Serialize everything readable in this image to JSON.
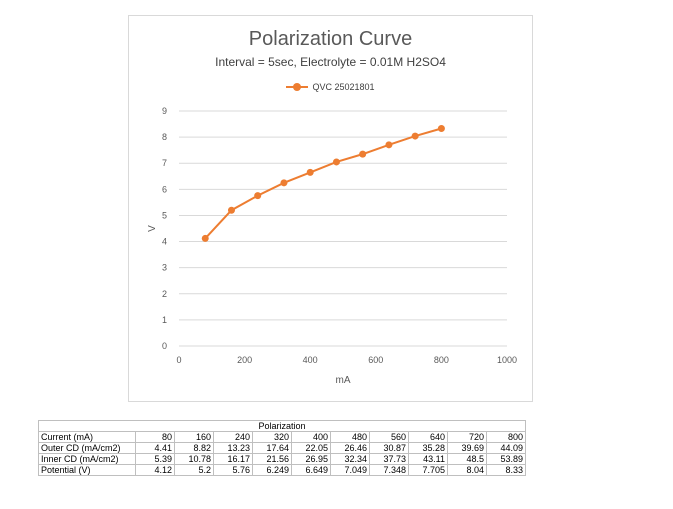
{
  "chart_data": {
    "type": "line",
    "title": "Polarization Curve",
    "subtitle": "Interval = 5sec, Electrolyte = 0.01M H2SO4",
    "xlabel": "mA",
    "ylabel": "V",
    "xlim": [
      0,
      1000
    ],
    "ylim": [
      0,
      9
    ],
    "xticks": [
      0,
      200,
      400,
      600,
      800,
      1000
    ],
    "yticks": [
      0,
      1,
      2,
      3,
      4,
      5,
      6,
      7,
      8,
      9
    ],
    "grid": "horizontal",
    "legend_position": "top",
    "series": [
      {
        "name": "QVC 25021801",
        "color": "#ED7D31",
        "x": [
          80,
          160,
          240,
          320,
          400,
          480,
          560,
          640,
          720,
          800
        ],
        "y": [
          4.12,
          5.2,
          5.76,
          6.249,
          6.649,
          7.049,
          7.348,
          7.705,
          8.04,
          8.33
        ]
      }
    ]
  },
  "table": {
    "caption": "Polarization",
    "rows": [
      {
        "label": "Current (mA)",
        "values": [
          "80",
          "160",
          "240",
          "320",
          "400",
          "480",
          "560",
          "640",
          "720",
          "800"
        ]
      },
      {
        "label": "Outer CD (mA/cm2)",
        "values": [
          "4.41",
          "8.82",
          "13.23",
          "17.64",
          "22.05",
          "26.46",
          "30.87",
          "35.28",
          "39.69",
          "44.09"
        ]
      },
      {
        "label": "Inner CD (mA/cm2)",
        "values": [
          "5.39",
          "10.78",
          "16.17",
          "21.56",
          "26.95",
          "32.34",
          "37.73",
          "43.11",
          "48.5",
          "53.89"
        ]
      },
      {
        "label": "Potential (V)",
        "values": [
          "4.12",
          "5.2",
          "5.76",
          "6.249",
          "6.649",
          "7.049",
          "7.348",
          "7.705",
          "8.04",
          "8.33"
        ]
      }
    ]
  }
}
